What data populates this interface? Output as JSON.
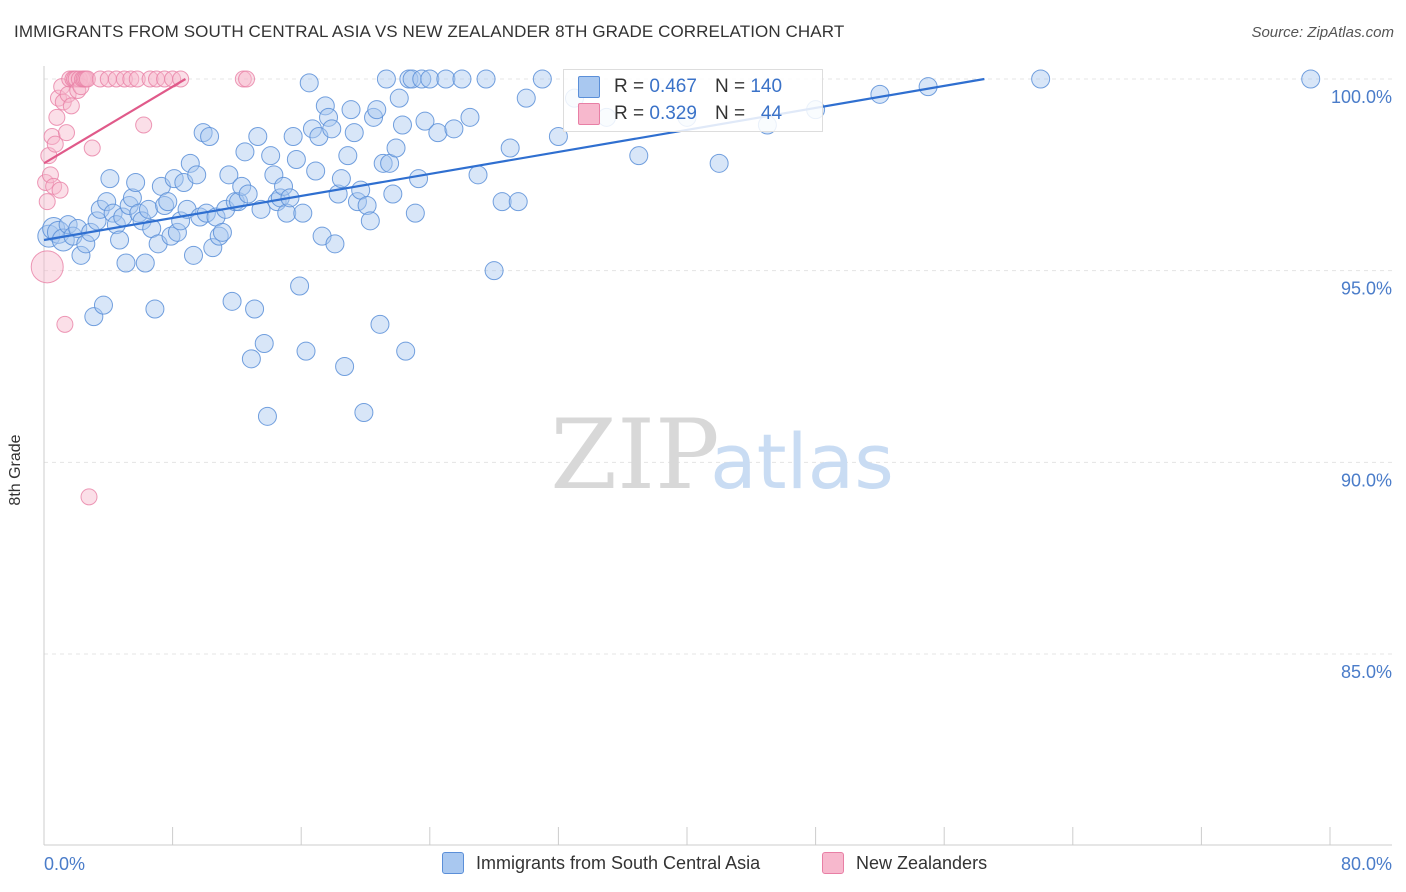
{
  "header": {
    "title": "IMMIGRANTS FROM SOUTH CENTRAL ASIA VS NEW ZEALANDER 8TH GRADE CORRELATION CHART",
    "source": "Source: ZipAtlas.com"
  },
  "watermark": {
    "zip": "ZIP",
    "atlas": "atlas"
  },
  "colors": {
    "blue_fill": "#a9c8f0",
    "blue_stroke": "#5b8fd8",
    "blue_line": "#2f6fd0",
    "pink_fill": "#f7b8cd",
    "pink_stroke": "#e87fa5",
    "pink_line": "#e05a8a",
    "tick_text": "#4a7cc9"
  },
  "stats": {
    "rows": [
      {
        "r_label": "R =",
        "r_value": "0.467",
        "n_label": "N =",
        "n_value": "140",
        "color": "blue"
      },
      {
        "r_label": "R =",
        "r_value": "0.329",
        "n_label": "N =",
        "n_value": "44",
        "color": "pink"
      }
    ]
  },
  "legend": {
    "items": [
      {
        "label": "Immigrants from South Central Asia",
        "color": "blue"
      },
      {
        "label": "New Zealanders",
        "color": "pink"
      }
    ]
  },
  "chart_data": {
    "type": "scatter",
    "title": "IMMIGRANTS FROM SOUTH CENTRAL ASIA VS NEW ZEALANDER 8TH GRADE CORRELATION CHART",
    "xlabel": "",
    "ylabel": "8th Grade",
    "xlim": [
      0,
      80
    ],
    "ylim": [
      80.5,
      100.8
    ],
    "x_tick_labels": [
      "0.0%",
      "80.0%"
    ],
    "y_ticks": [
      85,
      90,
      95,
      100
    ],
    "y_tick_labels": [
      "85.0%",
      "90.0%",
      "95.0%",
      "100.0%"
    ],
    "grid": true,
    "legend_position": "bottom",
    "series": [
      {
        "name": "Immigrants from South Central Asia",
        "color": "blue",
        "trend": {
          "x": [
            0,
            58.5
          ],
          "y": [
            95.8,
            100.0
          ]
        },
        "points": [
          [
            0.3,
            95.9
          ],
          [
            0.6,
            96.1
          ],
          [
            0.9,
            96.0
          ],
          [
            1.2,
            95.8
          ],
          [
            1.5,
            96.2
          ],
          [
            1.8,
            95.9
          ],
          [
            2.1,
            96.1
          ],
          [
            2.3,
            95.4
          ],
          [
            2.6,
            95.7
          ],
          [
            2.9,
            96.0
          ],
          [
            3.1,
            93.8
          ],
          [
            3.3,
            96.3
          ],
          [
            3.5,
            96.6
          ],
          [
            3.7,
            94.1
          ],
          [
            3.9,
            96.8
          ],
          [
            4.1,
            97.4
          ],
          [
            4.3,
            96.5
          ],
          [
            4.5,
            96.2
          ],
          [
            4.7,
            95.8
          ],
          [
            4.9,
            96.4
          ],
          [
            5.1,
            95.2
          ],
          [
            5.3,
            96.7
          ],
          [
            5.5,
            96.9
          ],
          [
            5.7,
            97.3
          ],
          [
            5.9,
            96.5
          ],
          [
            6.1,
            96.3
          ],
          [
            6.3,
            95.2
          ],
          [
            6.5,
            96.6
          ],
          [
            6.7,
            96.1
          ],
          [
            6.9,
            94.0
          ],
          [
            7.1,
            95.7
          ],
          [
            7.3,
            97.2
          ],
          [
            7.5,
            96.7
          ],
          [
            7.7,
            96.8
          ],
          [
            7.9,
            95.9
          ],
          [
            8.1,
            97.4
          ],
          [
            8.3,
            96.0
          ],
          [
            8.5,
            96.3
          ],
          [
            8.7,
            97.3
          ],
          [
            8.9,
            96.6
          ],
          [
            9.1,
            97.8
          ],
          [
            9.3,
            95.4
          ],
          [
            9.5,
            97.5
          ],
          [
            9.7,
            96.4
          ],
          [
            9.9,
            98.6
          ],
          [
            10.1,
            96.5
          ],
          [
            10.3,
            98.5
          ],
          [
            10.5,
            95.6
          ],
          [
            10.7,
            96.4
          ],
          [
            10.9,
            95.9
          ],
          [
            11.1,
            96.0
          ],
          [
            11.3,
            96.6
          ],
          [
            11.5,
            97.5
          ],
          [
            11.7,
            94.2
          ],
          [
            11.9,
            96.8
          ],
          [
            12.1,
            96.8
          ],
          [
            12.3,
            97.2
          ],
          [
            12.5,
            98.1
          ],
          [
            12.7,
            97.0
          ],
          [
            12.9,
            92.7
          ],
          [
            13.1,
            94.0
          ],
          [
            13.3,
            98.5
          ],
          [
            13.5,
            96.6
          ],
          [
            13.7,
            93.1
          ],
          [
            13.9,
            91.2
          ],
          [
            14.1,
            98.0
          ],
          [
            14.3,
            97.5
          ],
          [
            14.5,
            96.8
          ],
          [
            14.7,
            96.9
          ],
          [
            14.9,
            97.2
          ],
          [
            15.1,
            96.5
          ],
          [
            15.3,
            96.9
          ],
          [
            15.5,
            98.5
          ],
          [
            15.7,
            97.9
          ],
          [
            15.9,
            94.6
          ],
          [
            16.1,
            96.5
          ],
          [
            16.3,
            92.9
          ],
          [
            16.5,
            99.9
          ],
          [
            16.7,
            98.7
          ],
          [
            16.9,
            97.6
          ],
          [
            17.1,
            98.5
          ],
          [
            17.3,
            95.9
          ],
          [
            17.5,
            99.3
          ],
          [
            17.7,
            99.0
          ],
          [
            17.9,
            98.7
          ],
          [
            18.1,
            95.7
          ],
          [
            18.3,
            97.0
          ],
          [
            18.5,
            97.4
          ],
          [
            18.7,
            92.5
          ],
          [
            18.9,
            98.0
          ],
          [
            19.1,
            99.2
          ],
          [
            19.3,
            98.6
          ],
          [
            19.5,
            96.8
          ],
          [
            19.7,
            97.1
          ],
          [
            19.9,
            91.3
          ],
          [
            20.1,
            96.7
          ],
          [
            20.3,
            96.3
          ],
          [
            20.5,
            99.0
          ],
          [
            20.7,
            99.2
          ],
          [
            20.9,
            93.6
          ],
          [
            21.1,
            97.8
          ],
          [
            21.3,
            100.0
          ],
          [
            21.5,
            97.8
          ],
          [
            21.7,
            97.0
          ],
          [
            21.9,
            98.2
          ],
          [
            22.1,
            99.5
          ],
          [
            22.3,
            98.8
          ],
          [
            22.5,
            92.9
          ],
          [
            22.7,
            100.0
          ],
          [
            22.9,
            100.0
          ],
          [
            23.1,
            96.5
          ],
          [
            23.3,
            97.4
          ],
          [
            23.5,
            100.0
          ],
          [
            23.7,
            98.9
          ],
          [
            24.0,
            100.0
          ],
          [
            24.5,
            98.6
          ],
          [
            25.0,
            100.0
          ],
          [
            25.5,
            98.7
          ],
          [
            26.0,
            100.0
          ],
          [
            26.5,
            99.0
          ],
          [
            27.0,
            97.5
          ],
          [
            27.5,
            100.0
          ],
          [
            28.0,
            95.0
          ],
          [
            28.5,
            96.8
          ],
          [
            29.0,
            98.2
          ],
          [
            29.5,
            96.8
          ],
          [
            30.0,
            99.5
          ],
          [
            31.0,
            100.0
          ],
          [
            32.0,
            98.5
          ],
          [
            33.0,
            99.5
          ],
          [
            35.0,
            99.0
          ],
          [
            37.0,
            98.0
          ],
          [
            40.0,
            99.0
          ],
          [
            42.0,
            97.8
          ],
          [
            45.0,
            98.8
          ],
          [
            48.0,
            99.2
          ],
          [
            52.0,
            99.6
          ],
          [
            55.0,
            99.8
          ],
          [
            62.0,
            100.0
          ],
          [
            78.8,
            100.0
          ]
        ]
      },
      {
        "name": "New Zealanders",
        "color": "pink",
        "trend": {
          "x": [
            0,
            8.8
          ],
          "y": [
            97.8,
            100.0
          ]
        },
        "points": [
          [
            0.1,
            97.3
          ],
          [
            0.2,
            96.8
          ],
          [
            0.3,
            98.0
          ],
          [
            0.4,
            97.5
          ],
          [
            0.5,
            98.5
          ],
          [
            0.6,
            97.2
          ],
          [
            0.7,
            98.3
          ],
          [
            0.8,
            99.0
          ],
          [
            0.9,
            99.5
          ],
          [
            1.0,
            97.1
          ],
          [
            1.1,
            99.8
          ],
          [
            1.2,
            99.4
          ],
          [
            1.3,
            93.6
          ],
          [
            1.4,
            98.6
          ],
          [
            1.5,
            99.6
          ],
          [
            1.6,
            100.0
          ],
          [
            1.7,
            99.3
          ],
          [
            1.8,
            100.0
          ],
          [
            1.9,
            100.0
          ],
          [
            2.0,
            100.0
          ],
          [
            2.1,
            99.7
          ],
          [
            2.2,
            100.0
          ],
          [
            2.3,
            99.8
          ],
          [
            2.4,
            100.0
          ],
          [
            2.5,
            100.0
          ],
          [
            2.6,
            100.0
          ],
          [
            2.7,
            100.0
          ],
          [
            2.8,
            89.1
          ],
          [
            3.0,
            98.2
          ],
          [
            3.5,
            100.0
          ],
          [
            4.0,
            100.0
          ],
          [
            4.5,
            100.0
          ],
          [
            5.0,
            100.0
          ],
          [
            5.4,
            100.0
          ],
          [
            5.8,
            100.0
          ],
          [
            6.2,
            98.8
          ],
          [
            6.6,
            100.0
          ],
          [
            7.0,
            100.0
          ],
          [
            7.5,
            100.0
          ],
          [
            8.0,
            100.0
          ],
          [
            8.5,
            100.0
          ],
          [
            12.4,
            100.0
          ],
          [
            12.6,
            100.0
          ],
          [
            0.2,
            95.1
          ]
        ]
      }
    ]
  }
}
